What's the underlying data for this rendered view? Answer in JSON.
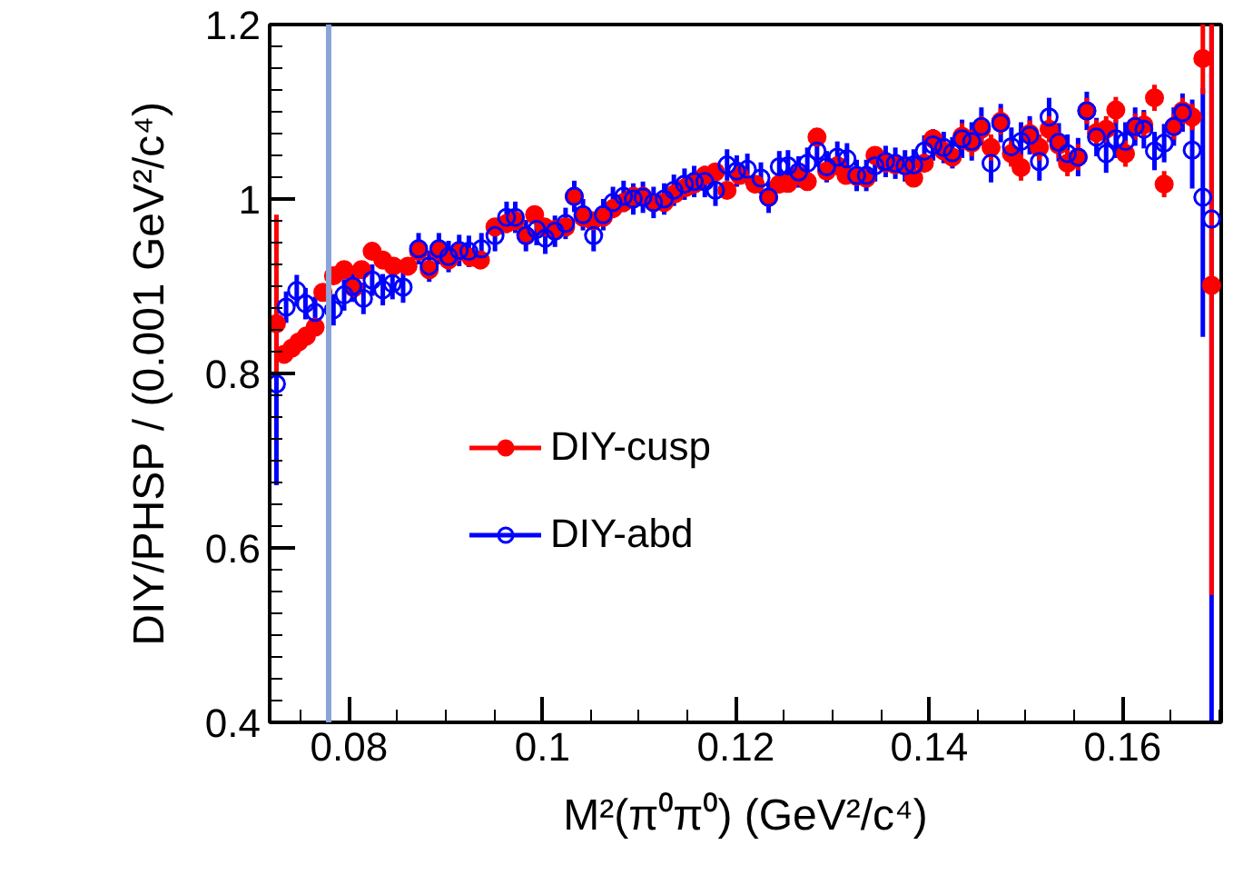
{
  "chart_data": {
    "type": "scatter",
    "xlabel": "M²(π⁰π⁰) (GeV²/c⁴)",
    "ylabel": "DIY/PHSP / (0.001 GeV²/c⁴)",
    "xlim": [
      0.0718,
      0.1702
    ],
    "ylim": [
      0.4,
      1.2
    ],
    "xticks": [
      {
        "value": 0.08,
        "label": "0.08"
      },
      {
        "value": 0.1,
        "label": "0.1"
      },
      {
        "value": 0.12,
        "label": "0.12"
      },
      {
        "value": 0.14,
        "label": "0.14"
      },
      {
        "value": 0.16,
        "label": "0.16"
      }
    ],
    "yticks": [
      {
        "value": 0.4,
        "label": "0.4"
      },
      {
        "value": 0.6,
        "label": "0.6"
      },
      {
        "value": 0.8,
        "label": "0.8"
      },
      {
        "value": 1,
        "label": "1"
      },
      {
        "value": 1.2,
        "label": "1.2"
      }
    ],
    "grid": false,
    "legend": "center",
    "marker": "circle",
    "ref_lines": [
      {
        "axis": "x",
        "value": 0.0779,
        "label": null,
        "color": "#8aa4d8"
      }
    ],
    "series": [
      {
        "name": "DIY-cusp",
        "color": "#ff0000",
        "x": [
          0.0725,
          0.0733,
          0.0741,
          0.0748,
          0.0756,
          0.0765,
          0.0773,
          0.0784,
          0.0795,
          0.0805,
          0.0813,
          0.0824,
          0.0835,
          0.0846,
          0.0861,
          0.0872,
          0.0883,
          0.0893,
          0.0903,
          0.0914,
          0.0926,
          0.0936,
          0.0951,
          0.0963,
          0.0972,
          0.0983,
          0.0992,
          0.1002,
          0.1013,
          0.1024,
          0.1033,
          0.1042,
          0.1052,
          0.1063,
          0.1073,
          0.1084,
          0.1094,
          0.1104,
          0.1115,
          0.1126,
          0.1137,
          0.1148,
          0.1157,
          0.1168,
          0.1179,
          0.1191,
          0.1204,
          0.122,
          0.1234,
          0.1245,
          0.1254,
          0.1265,
          0.1274,
          0.1284,
          0.1294,
          0.1305,
          0.1314,
          0.1325,
          0.1335,
          0.1344,
          0.1355,
          0.1365,
          0.1375,
          0.1384,
          0.1395,
          0.1404,
          0.1415,
          0.1424,
          0.1434,
          0.1444,
          0.1454,
          0.1464,
          0.1474,
          0.1485,
          0.1495,
          0.1504,
          0.1514,
          0.1524,
          0.1534,
          0.1543,
          0.1554,
          0.1563,
          0.1573,
          0.1583,
          0.1593,
          0.1603,
          0.1613,
          0.1622,
          0.1633,
          0.1643,
          0.1653,
          0.1662,
          0.1672,
          0.1683,
          0.1692
        ],
        "values": [
          0.857,
          0.822,
          0.829,
          0.836,
          0.843,
          0.853,
          0.893,
          0.912,
          0.919,
          0.898,
          0.919,
          0.94,
          0.93,
          0.923,
          0.923,
          0.94,
          0.919,
          0.94,
          0.93,
          0.94,
          0.933,
          0.93,
          0.968,
          0.972,
          0.975,
          0.958,
          0.982,
          0.968,
          0.965,
          0.968,
          1.003,
          0.979,
          0.975,
          0.979,
          0.989,
          0.996,
          1.003,
          1.003,
          0.996,
          0.996,
          1.006,
          1.013,
          1.017,
          1.027,
          1.031,
          1.01,
          1.027,
          1.017,
          1.002,
          1.017,
          1.018,
          1.027,
          1.02,
          1.071,
          1.032,
          1.038,
          1.027,
          1.026,
          1.024,
          1.05,
          1.041,
          1.039,
          1.038,
          1.024,
          1.041,
          1.069,
          1.055,
          1.048,
          1.072,
          1.064,
          1.08,
          1.059,
          1.089,
          1.052,
          1.036,
          1.075,
          1.059,
          1.08,
          1.062,
          1.041,
          1.048,
          1.101,
          1.076,
          1.08,
          1.102,
          1.052,
          1.083,
          1.085,
          1.116,
          1.017,
          1.083,
          1.101,
          1.094,
          1.161,
          0.901
        ],
        "errors": [
          [
            0.801,
            0.982
          ],
          0.01,
          0.01,
          0.01,
          0.01,
          0.01,
          0.01,
          0.01,
          0.01,
          0.01,
          0.01,
          0.01,
          0.01,
          0.01,
          0.01,
          0.01,
          0.01,
          0.01,
          0.01,
          0.01,
          0.01,
          0.01,
          0.01,
          0.01,
          0.01,
          0.01,
          0.01,
          0.01,
          0.01,
          0.01,
          0.01,
          0.01,
          0.01,
          0.01,
          0.01,
          0.01,
          0.01,
          0.01,
          0.01,
          0.01,
          0.01,
          0.01,
          0.01,
          0.01,
          0.01,
          0.01,
          0.01,
          0.01,
          0.01,
          0.01,
          0.01,
          0.01,
          0.01,
          0.01,
          0.01,
          0.01,
          0.01,
          0.01,
          0.01,
          0.01,
          0.01,
          0.01,
          0.01,
          0.01,
          0.01,
          0.01,
          0.01,
          0.01,
          0.015,
          0.015,
          0.015,
          0.015,
          0.015,
          0.015,
          0.015,
          0.015,
          0.015,
          0.015,
          0.015,
          0.015,
          0.015,
          0.015,
          0.015,
          0.015,
          0.015,
          0.015,
          0.015,
          0.015,
          0.015,
          0.015,
          0.015,
          0.015,
          0.015,
          [
            1.12,
            1.2
          ],
          [
            0.546,
            1.2
          ]
        ]
      },
      {
        "name": "DIY-abd",
        "color": "#0000ff",
        "x": [
          0.0725,
          0.0735,
          0.0746,
          0.0755,
          0.0765,
          0.0784,
          0.0795,
          0.0804,
          0.0815,
          0.0824,
          0.0835,
          0.0845,
          0.0856,
          0.0872,
          0.0883,
          0.0893,
          0.0903,
          0.0914,
          0.0924,
          0.0937,
          0.0951,
          0.0963,
          0.0972,
          0.0983,
          0.0994,
          0.1003,
          0.1013,
          0.1024,
          0.1033,
          0.1042,
          0.1053,
          0.1063,
          0.1073,
          0.1084,
          0.1094,
          0.1104,
          0.1115,
          0.1126,
          0.1136,
          0.1147,
          0.1157,
          0.1168,
          0.1179,
          0.1191,
          0.1201,
          0.1212,
          0.1226,
          0.1234,
          0.1245,
          0.1254,
          0.1265,
          0.1274,
          0.1284,
          0.1294,
          0.1305,
          0.1315,
          0.1325,
          0.1335,
          0.1344,
          0.1355,
          0.1365,
          0.1375,
          0.1384,
          0.1395,
          0.1404,
          0.1415,
          0.1424,
          0.1434,
          0.1444,
          0.1454,
          0.1464,
          0.1474,
          0.1485,
          0.1495,
          0.1504,
          0.1514,
          0.1524,
          0.1534,
          0.1543,
          0.1554,
          0.1563,
          0.1573,
          0.1583,
          0.1593,
          0.1603,
          0.1613,
          0.1622,
          0.1633,
          0.1643,
          0.1653,
          0.1662,
          0.1672,
          0.1683,
          0.1692
        ],
        "values": [
          0.788,
          0.876,
          0.895,
          0.88,
          0.87,
          0.873,
          0.89,
          0.9,
          0.886,
          0.907,
          0.896,
          0.903,
          0.899,
          0.943,
          0.923,
          0.943,
          0.934,
          0.941,
          0.94,
          0.943,
          0.958,
          0.979,
          0.979,
          0.958,
          0.965,
          0.955,
          0.963,
          0.972,
          1.003,
          0.982,
          0.958,
          0.982,
          0.996,
          1.003,
          1.0,
          1.002,
          0.996,
          1.0,
          1.01,
          1.017,
          1.02,
          1.02,
          1.01,
          1.039,
          1.032,
          1.034,
          1.024,
          1.002,
          1.037,
          1.038,
          1.031,
          1.041,
          1.055,
          1.037,
          1.048,
          1.046,
          1.027,
          1.027,
          1.038,
          1.043,
          1.041,
          1.038,
          1.039,
          1.055,
          1.062,
          1.059,
          1.053,
          1.069,
          1.066,
          1.083,
          1.041,
          1.087,
          1.06,
          1.066,
          1.073,
          1.043,
          1.094,
          1.065,
          1.052,
          1.048,
          1.101,
          1.071,
          1.052,
          1.069,
          1.066,
          1.083,
          1.08,
          1.055,
          1.064,
          1.083,
          1.099,
          1.056,
          1.002,
          0.977
        ],
        "errors": [
          [
            0.672,
            0.899
          ],
          0.018,
          0.018,
          0.018,
          0.018,
          0.018,
          0.018,
          0.018,
          0.018,
          0.018,
          0.018,
          0.018,
          0.018,
          0.018,
          0.018,
          0.018,
          0.018,
          0.018,
          0.018,
          0.018,
          0.018,
          0.018,
          0.018,
          0.018,
          0.018,
          0.018,
          0.018,
          0.018,
          0.018,
          0.018,
          0.018,
          0.018,
          0.018,
          0.018,
          0.018,
          0.018,
          0.018,
          0.018,
          0.018,
          0.018,
          0.018,
          0.018,
          0.018,
          0.018,
          0.018,
          0.018,
          0.018,
          0.018,
          0.018,
          0.018,
          0.018,
          0.018,
          0.018,
          0.018,
          0.018,
          0.018,
          0.018,
          0.018,
          0.018,
          0.018,
          0.018,
          0.018,
          0.018,
          0.018,
          0.018,
          0.018,
          0.018,
          0.022,
          0.022,
          0.022,
          0.022,
          0.022,
          0.022,
          0.022,
          0.022,
          0.022,
          0.022,
          0.022,
          0.022,
          0.022,
          0.022,
          0.022,
          0.022,
          0.022,
          0.022,
          0.022,
          0.022,
          0.022,
          0.022,
          0.022,
          0.022,
          [
            1.012,
            1.114
          ],
          [
            0.842,
            1.127
          ],
          [
            0.4,
            1.2
          ]
        ]
      }
    ]
  }
}
